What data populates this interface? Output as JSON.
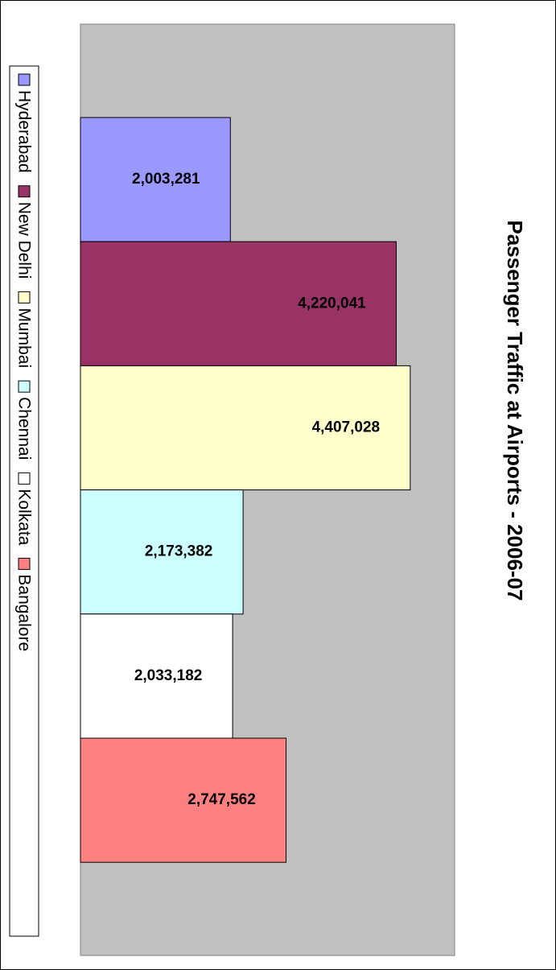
{
  "chart_data": {
    "type": "bar",
    "title": "Passenger Traffic at Airports - 2006-07",
    "categories": [
      "Hyderabad",
      "New Delhi",
      "Mumbai",
      "Chennai",
      "Kolkata",
      "Bangalore"
    ],
    "values": [
      2003281,
      4220041,
      4407028,
      2173382,
      2033182,
      2747562
    ],
    "value_labels": [
      "2,003,281",
      "4,220,041",
      "4,407,028",
      "2,173,382",
      "2,033,182",
      "2,747,562"
    ],
    "colors": [
      "#9999ff",
      "#993366",
      "#ffffcc",
      "#ccffff",
      "#ffffff",
      "#ff8080"
    ],
    "xlim": [
      0,
      5000000
    ],
    "legend": "left"
  }
}
